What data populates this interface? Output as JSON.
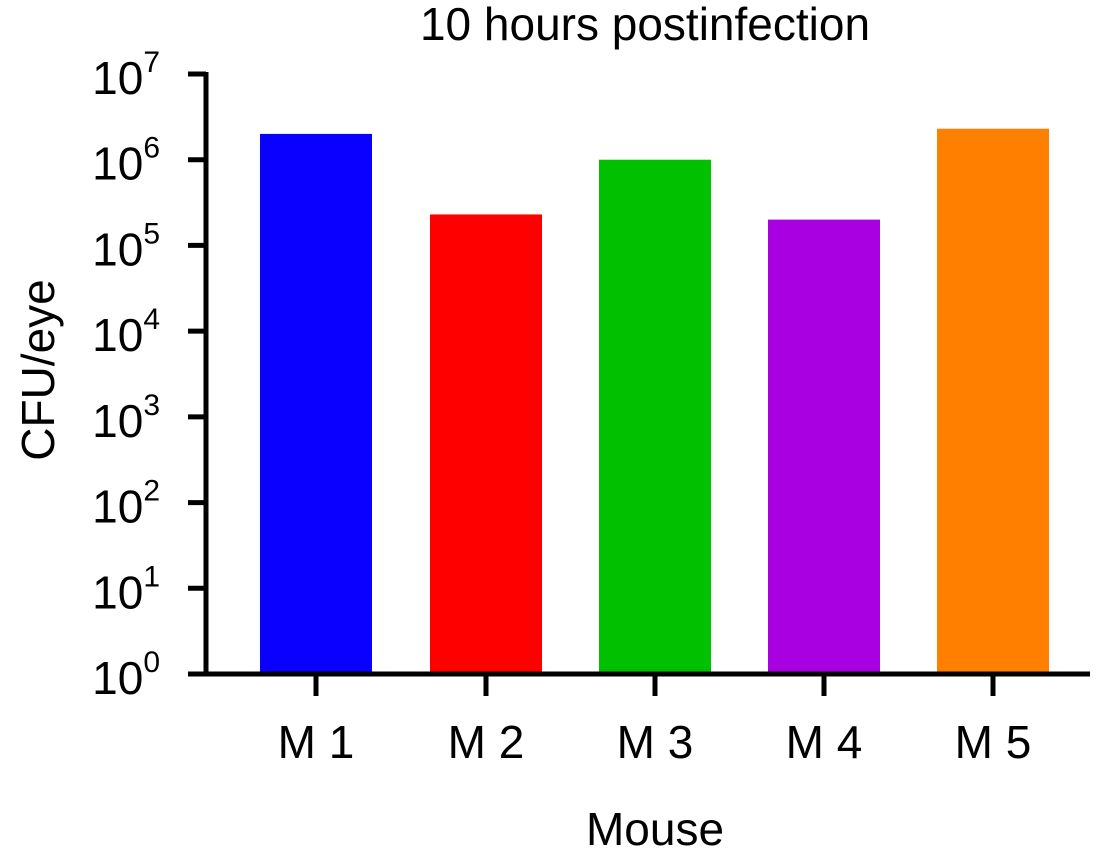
{
  "chart_data": {
    "type": "bar",
    "title": "10 hours postinfection",
    "xlabel": "Mouse",
    "ylabel": "CFU/eye",
    "yscale": "log",
    "ylim": [
      1,
      10000000
    ],
    "grid": false,
    "legend": "none",
    "categories": [
      "M 1",
      "M 2",
      "M 3",
      "M 4",
      "M 5"
    ],
    "values": [
      2000000,
      230000,
      1000000,
      200000,
      2300000
    ],
    "colors": [
      "#0a00ff",
      "#ff0000",
      "#00c000",
      "#a800e0",
      "#ff8000"
    ],
    "y_ticks": [
      {
        "value": 1,
        "base": "10",
        "exp": "0"
      },
      {
        "value": 10,
        "base": "10",
        "exp": "1"
      },
      {
        "value": 100,
        "base": "10",
        "exp": "2"
      },
      {
        "value": 1000,
        "base": "10",
        "exp": "3"
      },
      {
        "value": 10000,
        "base": "10",
        "exp": "4"
      },
      {
        "value": 100000,
        "base": "10",
        "exp": "5"
      },
      {
        "value": 1000000,
        "base": "10",
        "exp": "6"
      },
      {
        "value": 10000000,
        "base": "10",
        "exp": "7"
      }
    ]
  }
}
